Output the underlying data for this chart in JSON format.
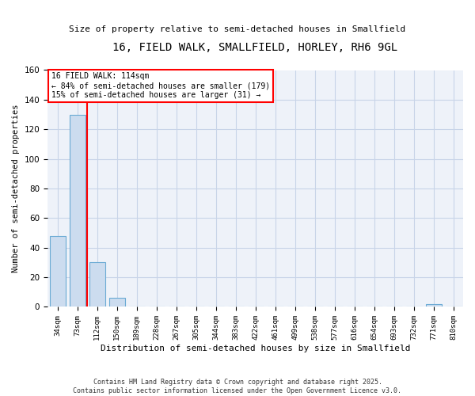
{
  "title": "16, FIELD WALK, SMALLFIELD, HORLEY, RH6 9GL",
  "subtitle": "Size of property relative to semi-detached houses in Smallfield",
  "xlabel": "Distribution of semi-detached houses by size in Smallfield",
  "ylabel": "Number of semi-detached properties",
  "categories": [
    "34sqm",
    "73sqm",
    "112sqm",
    "150sqm",
    "189sqm",
    "228sqm",
    "267sqm",
    "305sqm",
    "344sqm",
    "383sqm",
    "422sqm",
    "461sqm",
    "499sqm",
    "538sqm",
    "577sqm",
    "616sqm",
    "654sqm",
    "693sqm",
    "732sqm",
    "771sqm",
    "810sqm"
  ],
  "values": [
    48,
    130,
    30,
    6,
    0,
    0,
    0,
    0,
    0,
    0,
    0,
    0,
    0,
    0,
    0,
    0,
    0,
    0,
    0,
    2,
    0
  ],
  "bar_color": "#ccdcef",
  "bar_edge_color": "#6aaad4",
  "red_line_index": 2,
  "annotation_line1": "16 FIELD WALK: 114sqm",
  "annotation_line2": "← 84% of semi-detached houses are smaller (179)",
  "annotation_line3": "15% of semi-detached houses are larger (31) →",
  "footer": "Contains HM Land Registry data © Crown copyright and database right 2025.\nContains public sector information licensed under the Open Government Licence v3.0.",
  "ylim": [
    0,
    160
  ],
  "grid_color": "#c8d4e8",
  "background_color": "#eef2f9"
}
